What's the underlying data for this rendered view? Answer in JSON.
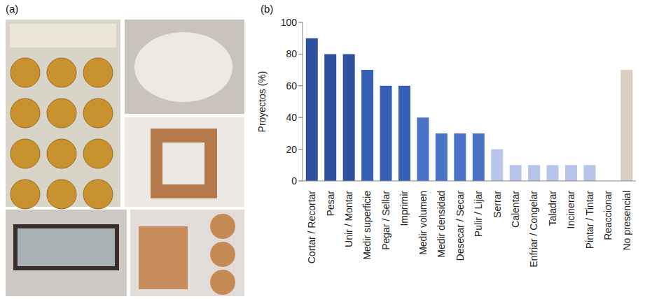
{
  "panel_labels": [
    "(a)",
    "(b)"
  ],
  "chart_data": {
    "type": "bar",
    "y_label": "Proyectos (%)",
    "categories": [
      "Cortar / Recortar",
      "Pesar",
      "Unir / Montar",
      "Medir superficie",
      "Pegar / Sellar",
      "Imprimir",
      "Medir volumen",
      "Medir densidad",
      "Desecar / Secar",
      "Pulir / Lijar",
      "Serrar",
      "Calentar",
      "Enfriar / Congelar",
      "Taladrar",
      "Incinerar",
      "Pintar / Tintar",
      "Reaccionar",
      "No presencial"
    ],
    "values": [
      90,
      80,
      80,
      70,
      60,
      60,
      40,
      30,
      30,
      30,
      20,
      10,
      10,
      10,
      10,
      10,
      0,
      70
    ],
    "colors": [
      "#2f4f9f",
      "#2f4f9f",
      "#2f4f9f",
      "#3560b5",
      "#3560b5",
      "#3560b5",
      "#4a73c8",
      "#4a73c8",
      "#4a73c8",
      "#4a73c8",
      "#b7c5ea",
      "#b7c5ea",
      "#b7c5ea",
      "#b7c5ea",
      "#b7c5ea",
      "#b7c5ea",
      "#b7c5ea",
      "#d8cfc0"
    ],
    "ylim": [
      0,
      100
    ],
    "yticks": [
      0,
      20,
      40,
      60,
      80,
      100
    ],
    "grid": false
  }
}
